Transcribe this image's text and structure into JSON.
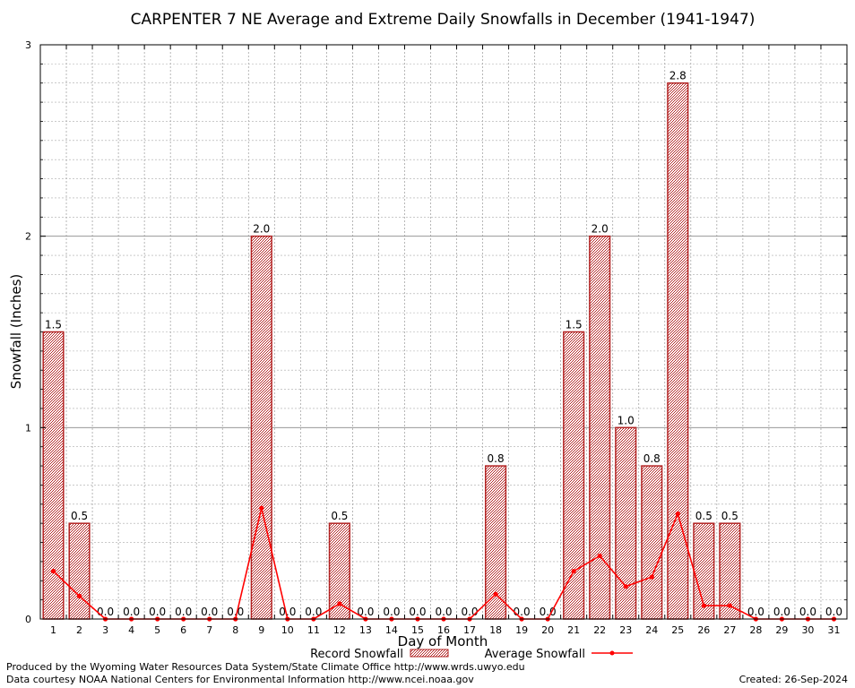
{
  "chart_data": {
    "type": "bar",
    "title": "CARPENTER 7 NE Average and Extreme Daily Snowfalls in December (1941-1947)",
    "xlabel": "Day of Month",
    "ylabel": "Snowfall (Inches)",
    "ylim": [
      0,
      3
    ],
    "y_ticks": [
      "0",
      "1",
      "2",
      "3"
    ],
    "grid": true,
    "legend_position": "bottom",
    "categories": [
      "1",
      "2",
      "3",
      "4",
      "5",
      "6",
      "7",
      "8",
      "9",
      "10",
      "11",
      "12",
      "13",
      "14",
      "15",
      "16",
      "17",
      "18",
      "19",
      "20",
      "21",
      "22",
      "23",
      "24",
      "25",
      "26",
      "27",
      "28",
      "29",
      "30",
      "31"
    ],
    "series": [
      {
        "name": "Record Snowfall",
        "type": "bar",
        "color": "#b22222",
        "values": [
          1.5,
          0.5,
          0,
          0,
          0,
          0,
          0,
          0,
          2.0,
          0,
          0,
          0.5,
          0,
          0,
          0,
          0,
          0,
          0.8,
          0,
          0,
          1.5,
          2.0,
          1.0,
          0.8,
          2.8,
          0.5,
          0.5,
          0,
          0,
          0,
          0
        ],
        "labels": [
          "1.5",
          "0.5",
          "0.0",
          "0.0",
          "0.0",
          "0.0",
          "0.0",
          "0.0",
          "2.0",
          "0.0",
          "0.0",
          "0.5",
          "0.0",
          "0.0",
          "0.0",
          "0.0",
          "0.0",
          "0.8",
          "0.0",
          "0.0",
          "1.5",
          "2.0",
          "1.0",
          "0.8",
          "2.8",
          "0.5",
          "0.5",
          "0.0",
          "0.0",
          "0.0",
          "0.0"
        ]
      },
      {
        "name": "Average Snowfall",
        "type": "line",
        "color": "#ff0000",
        "values": [
          0.25,
          0.12,
          0,
          0,
          0,
          0,
          0,
          0,
          0.58,
          0,
          0,
          0.08,
          0,
          0,
          0,
          0,
          0,
          0.13,
          0,
          0,
          0.25,
          0.33,
          0.17,
          0.22,
          0.55,
          0.07,
          0.07,
          0,
          0,
          0,
          0
        ]
      }
    ]
  },
  "footer": {
    "produced_by": "Produced by the Wyoming Water Resources Data System/State Climate Office http://www.wrds.uwyo.edu",
    "courtesy": "Data courtesy NOAA National Centers for Environmental Information http://www.ncei.noaa.gov",
    "created": "Created: 26-Sep-2024"
  }
}
